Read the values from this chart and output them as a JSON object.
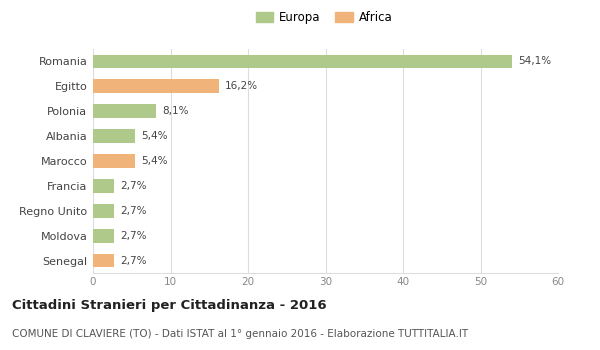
{
  "categories": [
    "Romania",
    "Egitto",
    "Polonia",
    "Albania",
    "Marocco",
    "Francia",
    "Regno Unito",
    "Moldova",
    "Senegal"
  ],
  "values": [
    54.1,
    16.2,
    8.1,
    5.4,
    5.4,
    2.7,
    2.7,
    2.7,
    2.7
  ],
  "labels": [
    "54,1%",
    "16,2%",
    "8,1%",
    "5,4%",
    "5,4%",
    "2,7%",
    "2,7%",
    "2,7%",
    "2,7%"
  ],
  "colors": [
    "#aec98a",
    "#f0b47a",
    "#aec98a",
    "#aec98a",
    "#f0b47a",
    "#aec98a",
    "#aec98a",
    "#aec98a",
    "#f0b47a"
  ],
  "europa_color": "#aec98a",
  "africa_color": "#f0b47a",
  "title_bold": "Cittadini Stranieri per Cittadinanza - 2016",
  "subtitle": "COMUNE DI CLAVIERE (TO) - Dati ISTAT al 1° gennaio 2016 - Elaborazione TUTTITALIA.IT",
  "xlim": [
    0,
    60
  ],
  "xticks": [
    0,
    10,
    20,
    30,
    40,
    50,
    60
  ],
  "background_color": "#ffffff",
  "grid_color": "#dddddd",
  "bar_height": 0.55,
  "legend_europa": "Europa",
  "legend_africa": "Africa"
}
